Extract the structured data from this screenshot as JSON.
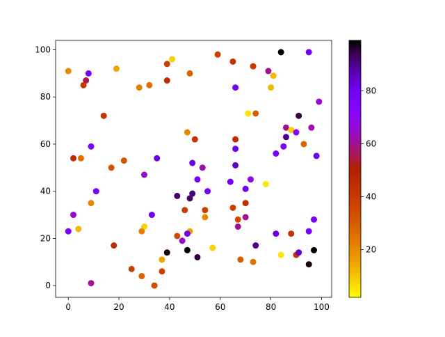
{
  "chart_data": {
    "type": "scatter",
    "title": "",
    "xlabel": "",
    "ylabel": "",
    "xlim": [
      -5,
      104
    ],
    "ylim": [
      -5,
      104
    ],
    "xticks": [
      0,
      20,
      40,
      60,
      80,
      100
    ],
    "yticks": [
      0,
      20,
      40,
      60,
      80,
      100
    ],
    "grid": false,
    "colormap": "gnuplot_r",
    "colorbar": {
      "range": [
        2,
        99
      ],
      "ticks": [
        20,
        40,
        60,
        80
      ],
      "placement": "right"
    },
    "points": [
      [
        0,
        91,
        20
      ],
      [
        8,
        90,
        75
      ],
      [
        7,
        87,
        55
      ],
      [
        6,
        85,
        40
      ],
      [
        19,
        92,
        15
      ],
      [
        41,
        96,
        8
      ],
      [
        39,
        94,
        38
      ],
      [
        28,
        84,
        22
      ],
      [
        32,
        85,
        25
      ],
      [
        39,
        87,
        45
      ],
      [
        48,
        90,
        28
      ],
      [
        59,
        98,
        38
      ],
      [
        65,
        95,
        42
      ],
      [
        73,
        93,
        40
      ],
      [
        84,
        99,
        99
      ],
      [
        95,
        99,
        80
      ],
      [
        79,
        91,
        60
      ],
      [
        81,
        89,
        12
      ],
      [
        80,
        84,
        12
      ],
      [
        66,
        84,
        80
      ],
      [
        14,
        72,
        42
      ],
      [
        71,
        73,
        5
      ],
      [
        74,
        73,
        30
      ],
      [
        91,
        72,
        95
      ],
      [
        99,
        78,
        65
      ],
      [
        47,
        65,
        20
      ],
      [
        50,
        62,
        42
      ],
      [
        66,
        62,
        45
      ],
      [
        66,
        58,
        80
      ],
      [
        86,
        67,
        60
      ],
      [
        88,
        66,
        8
      ],
      [
        90,
        65,
        72
      ],
      [
        96,
        67,
        62
      ],
      [
        86,
        63,
        90
      ],
      [
        85,
        59,
        78
      ],
      [
        82,
        56,
        78
      ],
      [
        93,
        60,
        28
      ],
      [
        98,
        55,
        80
      ],
      [
        9,
        59,
        78
      ],
      [
        2,
        54,
        45
      ],
      [
        5,
        54,
        25
      ],
      [
        35,
        54,
        82
      ],
      [
        22,
        53,
        32
      ],
      [
        17,
        50,
        32
      ],
      [
        49,
        52,
        82
      ],
      [
        53,
        50,
        62
      ],
      [
        30,
        47,
        65
      ],
      [
        66,
        51,
        85
      ],
      [
        51,
        45,
        78
      ],
      [
        11,
        40,
        78
      ],
      [
        55,
        40,
        78
      ],
      [
        64,
        44,
        80
      ],
      [
        72,
        45,
        68
      ],
      [
        70,
        41,
        80
      ],
      [
        78,
        43,
        5
      ],
      [
        9,
        35,
        20
      ],
      [
        43,
        38,
        92
      ],
      [
        49,
        39,
        92
      ],
      [
        48,
        37,
        92
      ],
      [
        70,
        35,
        45
      ],
      [
        65,
        33,
        38
      ],
      [
        46,
        32,
        38
      ],
      [
        54,
        32,
        38
      ],
      [
        54,
        29,
        20
      ],
      [
        70,
        29,
        60
      ],
      [
        67,
        28,
        35
      ],
      [
        67,
        25,
        60
      ],
      [
        74,
        17,
        90
      ],
      [
        97,
        28,
        78
      ],
      [
        95,
        23,
        78
      ],
      [
        2,
        30,
        65
      ],
      [
        0,
        23,
        78
      ],
      [
        4,
        24,
        12
      ],
      [
        30,
        25,
        8
      ],
      [
        29,
        23,
        22
      ],
      [
        33,
        30,
        80
      ],
      [
        43,
        21,
        35
      ],
      [
        48,
        23,
        15
      ],
      [
        47,
        22,
        80
      ],
      [
        45,
        19,
        65
      ],
      [
        39,
        14,
        98
      ],
      [
        47,
        15,
        99
      ],
      [
        51,
        12,
        95
      ],
      [
        37,
        11,
        15
      ],
      [
        57,
        16,
        8
      ],
      [
        18,
        17,
        45
      ],
      [
        82,
        22,
        82
      ],
      [
        88,
        22,
        42
      ],
      [
        90,
        13,
        42
      ],
      [
        91,
        14,
        85
      ],
      [
        97,
        15,
        99
      ],
      [
        95,
        9,
        98
      ],
      [
        84,
        13,
        5
      ],
      [
        68,
        11,
        30
      ],
      [
        73,
        10,
        25
      ],
      [
        25,
        7,
        38
      ],
      [
        29,
        4,
        28
      ],
      [
        37,
        6,
        38
      ],
      [
        34,
        0,
        35
      ],
      [
        9,
        1,
        60
      ]
    ]
  }
}
